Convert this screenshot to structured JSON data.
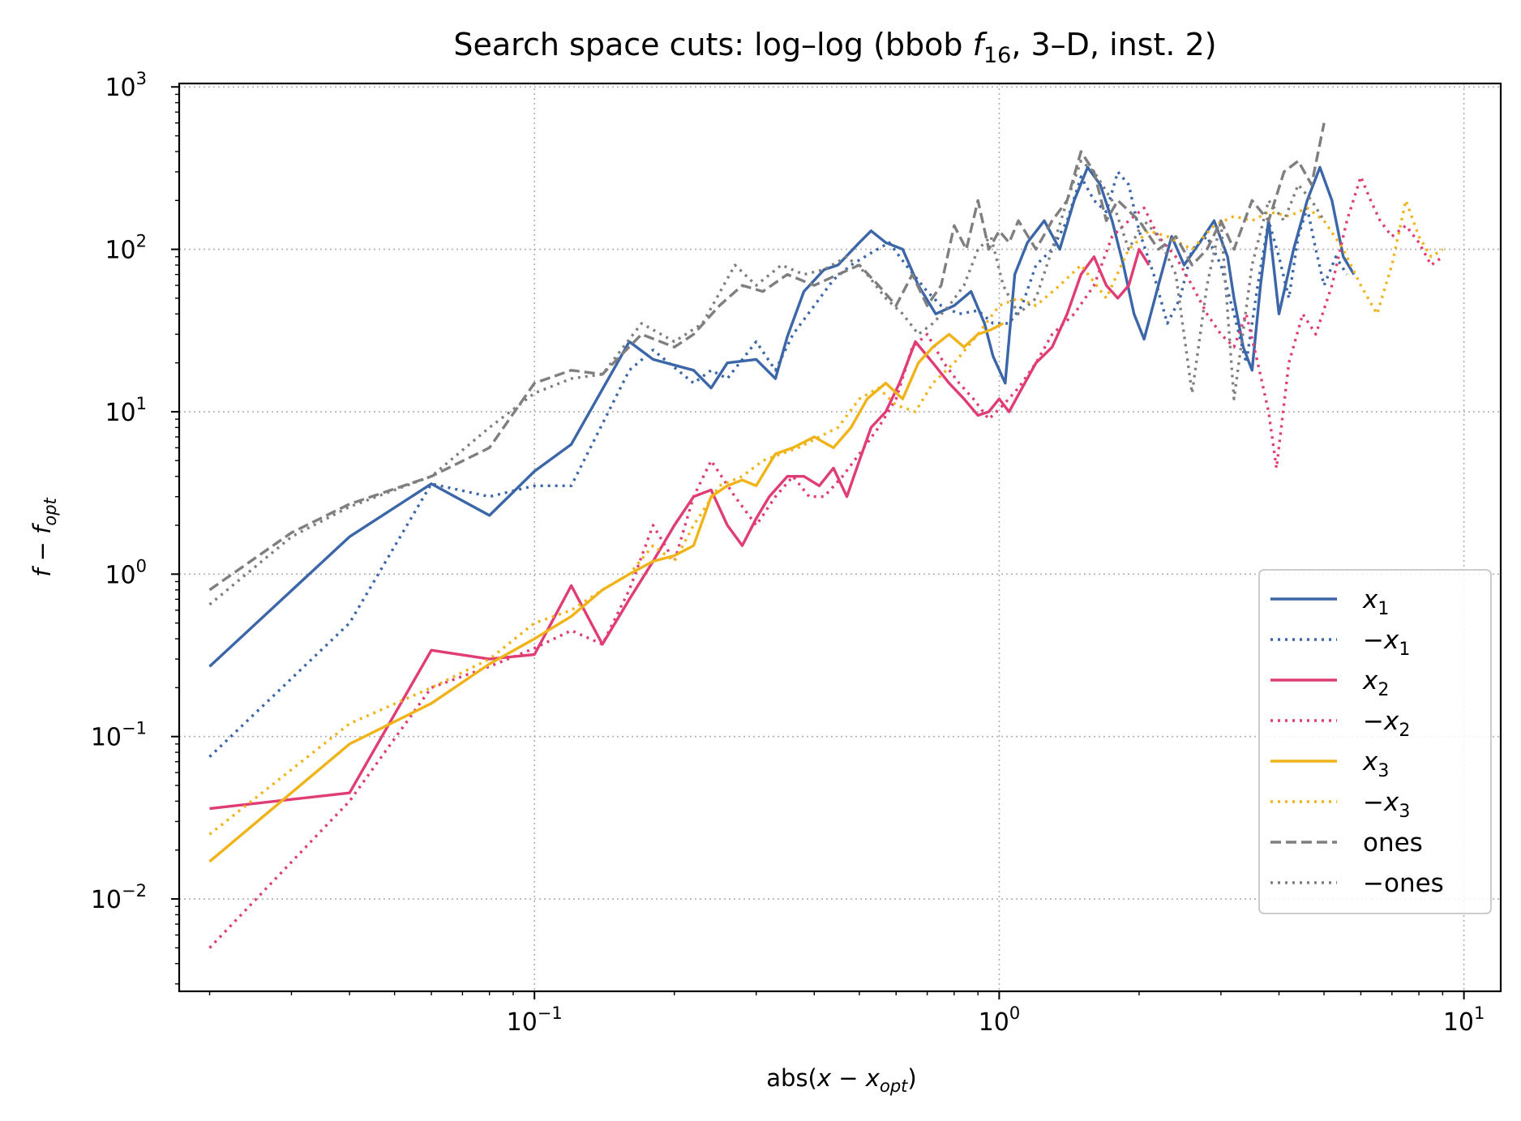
{
  "chart_data": {
    "type": "line",
    "title": "Search space cuts: log–log (bbob f16, 3–D, inst. 2)",
    "title_parts": {
      "prefix": "Search space cuts: log–log (bbob ",
      "fn": "f",
      "fn_sub": "16",
      "suffix": ", 3–D, inst. 2)"
    },
    "xlabel": "abs(x − x_opt)",
    "xlabel_parts": {
      "prefix": "abs(",
      "var": "x",
      "minus": " − ",
      "var2": "x",
      "sub": "opt",
      "suffix": ")"
    },
    "ylabel": "f − f_opt",
    "ylabel_parts": {
      "var": "f",
      "minus": " − ",
      "var2": "f",
      "sub": "opt"
    },
    "xscale": "log",
    "yscale": "log",
    "xlim": [
      0.0172,
      12.0
    ],
    "ylim": [
      0.0027,
      1050
    ],
    "grid": true,
    "legend_placement": "lower-right",
    "x_ticks": [
      {
        "value": 0.1,
        "base": "10",
        "exp": "−1"
      },
      {
        "value": 1,
        "base": "10",
        "exp": "0"
      },
      {
        "value": 10,
        "base": "10",
        "exp": "1"
      }
    ],
    "y_ticks": [
      {
        "value": 0.01,
        "base": "10",
        "exp": "−2"
      },
      {
        "value": 0.1,
        "base": "10",
        "exp": "−1"
      },
      {
        "value": 1,
        "base": "10",
        "exp": "0"
      },
      {
        "value": 10,
        "base": "10",
        "exp": "1"
      },
      {
        "value": 100,
        "base": "10",
        "exp": "2"
      },
      {
        "value": 1000,
        "base": "10",
        "exp": "3"
      }
    ],
    "series": [
      {
        "name": "x1",
        "label_prefix": "",
        "label_var": "x",
        "label_sub": "1",
        "color": "#3b66a8",
        "dash": "solid",
        "x": [
          0.02,
          0.04,
          0.06,
          0.08,
          0.1,
          0.12,
          0.16,
          0.18,
          0.22,
          0.24,
          0.26,
          0.3,
          0.33,
          0.35,
          0.38,
          0.42,
          0.45,
          0.5,
          0.53,
          0.57,
          0.62,
          0.67,
          0.73,
          0.8,
          0.87,
          0.93,
          0.97,
          1.03,
          1.08,
          1.15,
          1.25,
          1.35,
          1.45,
          1.55,
          1.65,
          1.75,
          1.85,
          1.95,
          2.05,
          2.2,
          2.35,
          2.5,
          2.7,
          2.9,
          3.1,
          3.2,
          3.35,
          3.5,
          3.65,
          3.8,
          4.0,
          4.3,
          4.6,
          4.9,
          5.2,
          5.5,
          5.8
        ],
        "y": [
          0.27,
          1.7,
          3.6,
          2.3,
          4.3,
          6.3,
          27,
          21,
          18,
          14,
          20,
          21,
          16,
          29,
          55,
          75,
          80,
          110,
          130,
          110,
          100,
          60,
          40,
          45,
          55,
          35,
          22,
          15,
          70,
          110,
          150,
          100,
          200,
          320,
          250,
          150,
          80,
          40,
          28,
          60,
          120,
          80,
          110,
          150,
          90,
          50,
          25,
          18,
          60,
          150,
          40,
          100,
          200,
          320,
          200,
          90,
          70
        ]
      },
      {
        "name": "−x1",
        "label_prefix": "−",
        "label_var": "x",
        "label_sub": "1",
        "color": "#3b66a8",
        "dash": "dotted",
        "x": [
          0.02,
          0.04,
          0.06,
          0.08,
          0.1,
          0.12,
          0.16,
          0.18,
          0.22,
          0.24,
          0.26,
          0.3,
          0.33,
          0.36,
          0.4,
          0.44,
          0.48,
          0.53,
          0.58,
          0.63,
          0.7,
          0.75,
          0.82,
          0.9,
          0.97,
          1.05,
          1.12,
          1.2,
          1.3,
          1.4,
          1.5,
          1.6,
          1.7,
          1.8,
          1.9,
          2.0,
          2.15,
          2.3,
          2.45,
          2.6,
          2.8,
          3.0,
          3.2,
          3.4,
          3.6,
          3.8,
          4.0,
          4.2,
          4.4,
          4.6,
          4.8,
          5.0,
          5.3,
          5.6
        ],
        "y": [
          0.075,
          0.5,
          3.6,
          3.0,
          3.5,
          3.5,
          18,
          24,
          15,
          18,
          16,
          27,
          18,
          30,
          45,
          65,
          80,
          95,
          110,
          80,
          55,
          45,
          40,
          42,
          35,
          35,
          45,
          80,
          100,
          150,
          280,
          200,
          170,
          300,
          250,
          130,
          70,
          35,
          50,
          100,
          120,
          80,
          40,
          20,
          60,
          150,
          90,
          50,
          120,
          180,
          100,
          60,
          90,
          70
        ]
      },
      {
        "name": "x2",
        "label_prefix": "",
        "label_var": "x",
        "label_sub": "2",
        "color": "#e03c75",
        "dash": "solid",
        "x": [
          0.02,
          0.04,
          0.06,
          0.08,
          0.1,
          0.12,
          0.14,
          0.16,
          0.18,
          0.2,
          0.22,
          0.24,
          0.26,
          0.28,
          0.3,
          0.32,
          0.35,
          0.38,
          0.41,
          0.44,
          0.47,
          0.5,
          0.53,
          0.57,
          0.61,
          0.66,
          0.72,
          0.78,
          0.84,
          0.9,
          0.95,
          1.0,
          1.05,
          1.12,
          1.2,
          1.3,
          1.4,
          1.5,
          1.6,
          1.7,
          1.8,
          1.9,
          2.0,
          2.1
        ],
        "y": [
          0.036,
          0.045,
          0.34,
          0.3,
          0.32,
          0.85,
          0.37,
          0.7,
          1.2,
          2.0,
          3.0,
          3.3,
          2.0,
          1.5,
          2.2,
          3.0,
          4.0,
          4.0,
          3.5,
          4.5,
          3.0,
          5.0,
          8.0,
          10.0,
          15.0,
          27.0,
          20.0,
          15.0,
          12.0,
          9.5,
          10.0,
          12.0,
          10.0,
          14.0,
          20.0,
          25.0,
          40.0,
          70.0,
          90.0,
          60.0,
          50.0,
          60.0,
          100.0,
          80.0
        ]
      },
      {
        "name": "−x2",
        "label_prefix": "−",
        "label_var": "x",
        "label_sub": "2",
        "color": "#e03c75",
        "dash": "dotted",
        "x": [
          0.02,
          0.04,
          0.06,
          0.08,
          0.1,
          0.12,
          0.14,
          0.16,
          0.18,
          0.2,
          0.22,
          0.24,
          0.27,
          0.3,
          0.33,
          0.36,
          0.39,
          0.42,
          0.46,
          0.5,
          0.55,
          0.6,
          0.65,
          0.7,
          0.76,
          0.82,
          0.88,
          0.95,
          1.02,
          1.1,
          1.2,
          1.3,
          1.45,
          1.6,
          1.75,
          1.9,
          2.05,
          2.2,
          2.4,
          2.6,
          2.8,
          3.0,
          3.2,
          3.4,
          3.6,
          3.8,
          3.95,
          4.2,
          4.5,
          4.8,
          5.2,
          5.6,
          6.0,
          6.3,
          6.6,
          7.0,
          7.5,
          8.0,
          8.5,
          9.0
        ],
        "y": [
          0.005,
          0.04,
          0.2,
          0.27,
          0.35,
          0.45,
          0.37,
          0.8,
          2.0,
          1.2,
          3.0,
          5.0,
          3.0,
          2.0,
          3.0,
          4.0,
          3.0,
          3.0,
          4.0,
          5.5,
          8.0,
          12.0,
          25.0,
          30.0,
          20.0,
          15.0,
          12.0,
          9.0,
          11.0,
          14.0,
          20.0,
          30.0,
          40.0,
          60.0,
          120.0,
          150.0,
          180.0,
          120.0,
          90.0,
          60.0,
          40.0,
          30.0,
          25.0,
          40.0,
          20.0,
          10.0,
          4.5,
          20.0,
          40.0,
          30.0,
          60.0,
          150.0,
          280.0,
          200.0,
          150.0,
          120.0,
          140.0,
          110.0,
          80.0,
          90.0
        ]
      },
      {
        "name": "x3",
        "label_prefix": "",
        "label_var": "x",
        "label_sub": "3",
        "color": "#f0b41a",
        "dash": "solid",
        "x": [
          0.02,
          0.04,
          0.06,
          0.08,
          0.1,
          0.12,
          0.14,
          0.16,
          0.18,
          0.2,
          0.22,
          0.24,
          0.26,
          0.28,
          0.3,
          0.33,
          0.36,
          0.4,
          0.44,
          0.48,
          0.52,
          0.57,
          0.62,
          0.67,
          0.72,
          0.78,
          0.84,
          0.9,
          0.96,
          1.02
        ],
        "y": [
          0.017,
          0.09,
          0.16,
          0.28,
          0.4,
          0.55,
          0.8,
          1.0,
          1.2,
          1.3,
          1.5,
          3.0,
          3.5,
          3.8,
          3.5,
          5.5,
          6.0,
          7.0,
          6.0,
          8.0,
          12.0,
          15.0,
          12.0,
          20.0,
          25.0,
          30.0,
          25.0,
          30.0,
          32.0,
          35.0
        ]
      },
      {
        "name": "−x3",
        "label_prefix": "−",
        "label_var": "x",
        "label_sub": "3",
        "color": "#f0b41a",
        "dash": "dotted",
        "x": [
          0.02,
          0.04,
          0.06,
          0.08,
          0.1,
          0.12,
          0.14,
          0.16,
          0.18,
          0.2,
          0.22,
          0.25,
          0.28,
          0.31,
          0.34,
          0.37,
          0.41,
          0.45,
          0.5,
          0.55,
          0.6,
          0.66,
          0.72,
          0.8,
          0.9,
          1.0,
          1.1,
          1.2,
          1.35,
          1.5,
          1.7,
          1.9,
          2.1,
          2.3,
          2.6,
          2.9,
          3.2,
          3.5,
          3.8,
          4.2,
          4.6,
          5.0,
          5.5,
          6.0,
          6.5,
          7.0,
          7.5,
          8.0,
          8.5,
          9.0
        ],
        "y": [
          0.025,
          0.12,
          0.2,
          0.3,
          0.5,
          0.6,
          0.8,
          1.0,
          1.5,
          1.2,
          2.0,
          3.5,
          4.0,
          5.0,
          5.5,
          6.0,
          7.0,
          8.0,
          12.0,
          14.0,
          11.0,
          10.0,
          15.0,
          20.0,
          30.0,
          45.0,
          50.0,
          45.0,
          60.0,
          80.0,
          50.0,
          100.0,
          130.0,
          120.0,
          100.0,
          140.0,
          160.0,
          150.0,
          170.0,
          160.0,
          180.0,
          150.0,
          100.0,
          60.0,
          40.0,
          80.0,
          200.0,
          120.0,
          90.0,
          100.0
        ]
      },
      {
        "name": "ones",
        "label_prefix": "",
        "label_var": "",
        "label_sub": "",
        "label_text": "ones",
        "color": "#7f7f7f",
        "dash": "dashed",
        "x": [
          0.02,
          0.03,
          0.04,
          0.06,
          0.08,
          0.1,
          0.12,
          0.14,
          0.17,
          0.2,
          0.22,
          0.25,
          0.28,
          0.31,
          0.35,
          0.4,
          0.45,
          0.5,
          0.55,
          0.6,
          0.65,
          0.7,
          0.75,
          0.8,
          0.85,
          0.9,
          0.95,
          1.0,
          1.05,
          1.1,
          1.2,
          1.3,
          1.4,
          1.5,
          1.6,
          1.7,
          1.8,
          2.0,
          2.2,
          2.4,
          2.6,
          2.8,
          3.0,
          3.2,
          3.5,
          3.8,
          4.1,
          4.4,
          4.7,
          5.0
        ],
        "y": [
          0.8,
          1.8,
          2.7,
          4.0,
          6.0,
          15.0,
          18.0,
          17.0,
          30.0,
          25.0,
          30.0,
          45.0,
          60.0,
          55.0,
          70.0,
          60.0,
          70.0,
          80.0,
          60.0,
          45.0,
          70.0,
          45.0,
          60.0,
          140.0,
          100.0,
          200.0,
          100.0,
          130.0,
          110.0,
          150.0,
          100.0,
          150.0,
          200.0,
          400.0,
          300.0,
          150.0,
          200.0,
          150.0,
          100.0,
          120.0,
          80.0,
          100.0,
          150.0,
          100.0,
          200.0,
          150.0,
          300.0,
          350.0,
          250.0,
          600.0
        ]
      },
      {
        "name": "−ones",
        "label_prefix": "−",
        "label_var": "",
        "label_sub": "",
        "label_text": "ones",
        "color": "#7f7f7f",
        "dash": "dotted",
        "x": [
          0.02,
          0.03,
          0.04,
          0.06,
          0.08,
          0.1,
          0.12,
          0.14,
          0.17,
          0.2,
          0.23,
          0.27,
          0.3,
          0.34,
          0.38,
          0.42,
          0.47,
          0.52,
          0.57,
          0.62,
          0.67,
          0.72,
          0.78,
          0.84,
          0.9,
          0.96,
          1.02,
          1.1,
          1.2,
          1.3,
          1.4,
          1.5,
          1.6,
          1.75,
          1.9,
          2.05,
          2.2,
          2.4,
          2.6,
          2.8,
          3.0,
          3.2,
          3.5,
          3.8,
          4.1,
          4.4,
          4.7,
          5.0
        ],
        "y": [
          0.65,
          1.7,
          2.6,
          4.0,
          8.0,
          13.0,
          16.0,
          17.0,
          35.0,
          27.0,
          35.0,
          80.0,
          60.0,
          80.0,
          70.0,
          75.0,
          90.0,
          70.0,
          50.0,
          40.0,
          30.0,
          35.0,
          45.0,
          60.0,
          100.0,
          120.0,
          60.0,
          40.0,
          50.0,
          100.0,
          200.0,
          350.0,
          300.0,
          200.0,
          100.0,
          150.0,
          120.0,
          70.0,
          13.0,
          60.0,
          150.0,
          12.0,
          80.0,
          200.0,
          150.0,
          250.0,
          200.0,
          150.0
        ]
      }
    ]
  }
}
